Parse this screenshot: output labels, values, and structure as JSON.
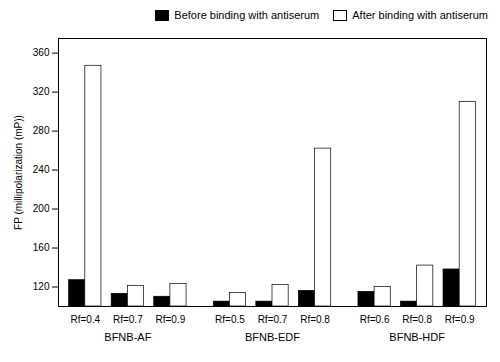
{
  "chart_data": {
    "type": "bar",
    "categories": [
      "Rf=0.4",
      "Rf=0.7",
      "Rf=0.9",
      "Rf=0.5",
      "Rf=0.7",
      "Rf=0.8",
      "Rf=0.6",
      "Rf=0.8",
      "Rf=0.9"
    ],
    "series": [
      {
        "name": "Before binding with antiserum",
        "color": "#000000",
        "values": [
          127,
          113,
          110,
          105,
          105,
          116,
          115,
          105,
          138
        ]
      },
      {
        "name": "After binding with antiserum",
        "color": "#ffffff",
        "values": [
          347,
          121,
          123,
          114,
          122,
          262,
          120,
          142,
          310
        ]
      }
    ],
    "ylabel": "FP (millipolarization (mP))",
    "ylim": [
      100,
      375
    ],
    "yticks": [
      120,
      160,
      200,
      240,
      280,
      320,
      360
    ],
    "annotations": [
      {
        "text": "BFNB-AF",
        "span": [
          0,
          2
        ]
      },
      {
        "text": "BFNB-EDF",
        "span": [
          3,
          5
        ]
      },
      {
        "text": "BFNB-HDF",
        "span": [
          6,
          8
        ]
      }
    ],
    "legend": "upper right",
    "grid": false
  }
}
